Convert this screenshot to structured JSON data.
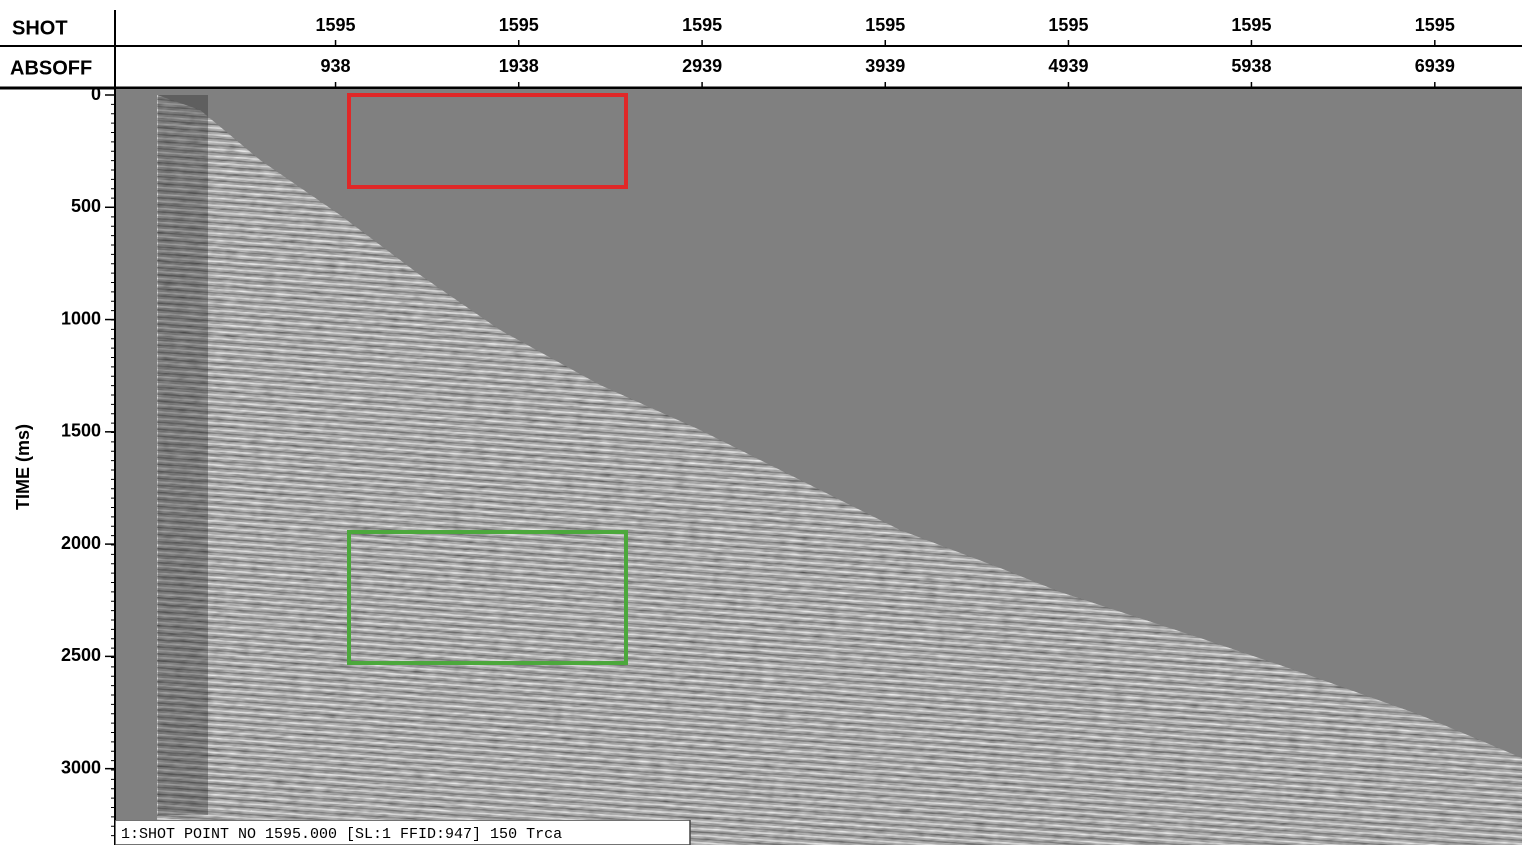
{
  "chart_data": {
    "type": "seismic",
    "ylabel": "TIME (ms)",
    "ylim": [
      0,
      3340
    ],
    "yticks": [
      0,
      500,
      1000,
      1500,
      2000,
      2500,
      3000
    ],
    "xlim": [
      -266,
      7415
    ],
    "header_rows": [
      {
        "label": "SHOT",
        "values": [
          1595,
          1595,
          1595,
          1595,
          1595,
          1595,
          1595
        ]
      },
      {
        "label": "ABSOFF",
        "values": [
          938,
          1938,
          2939,
          3939,
          4939,
          5938,
          6939
        ]
      }
    ]
  },
  "status_bar": "1:SHOT POINT NO 1595.000 [SL:1 FFID:947] 150 Trca"
}
